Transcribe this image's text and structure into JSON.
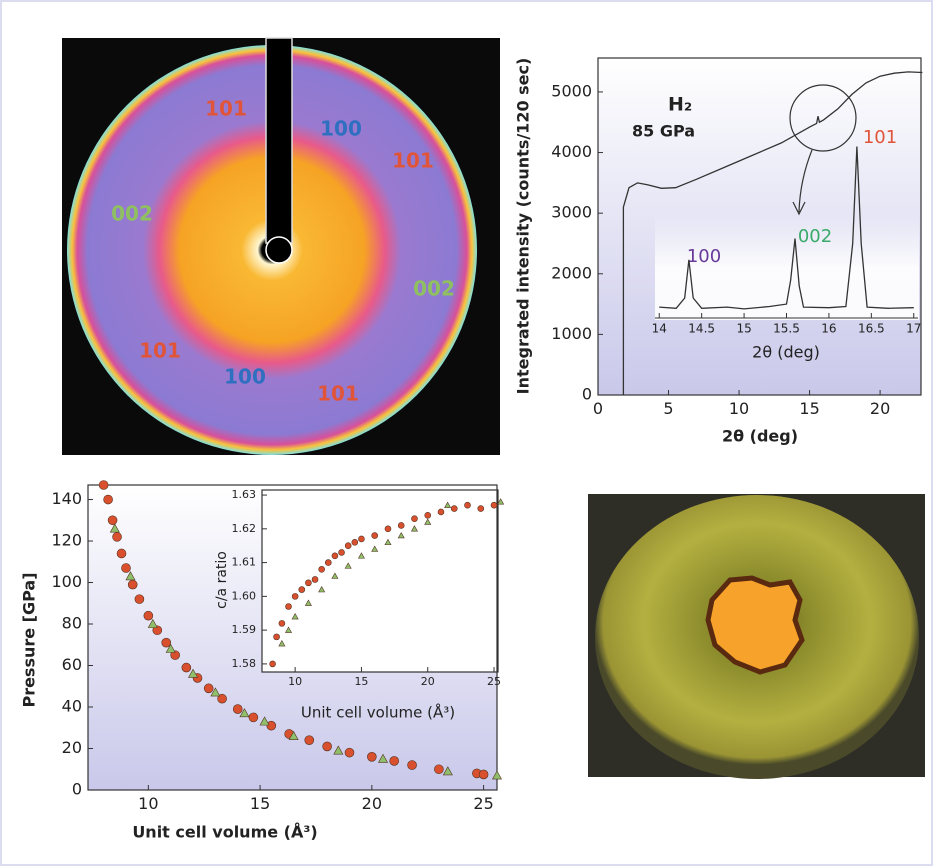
{
  "diffraction_image": {
    "ring_labels": [
      {
        "text": "101",
        "color": "#e0553a"
      },
      {
        "text": "100",
        "color": "#2f6fc0"
      },
      {
        "text": "101",
        "color": "#e0553a"
      },
      {
        "text": "002",
        "color": "#8fc060"
      },
      {
        "text": "002",
        "color": "#8fc060"
      },
      {
        "text": "101",
        "color": "#e0553a"
      },
      {
        "text": "100",
        "color": "#2f6fc0"
      },
      {
        "text": "101",
        "color": "#e0553a"
      }
    ]
  },
  "chart_data": [
    {
      "type": "line",
      "title": "H₂",
      "subtitle": "85 GPa",
      "xlabel": "2θ (deg)",
      "ylabel": "Integrated intensity (counts/120 sec)",
      "xlim": [
        0,
        22.9
      ],
      "xticks": [
        0,
        5,
        10,
        15,
        20
      ],
      "ylim": [
        0,
        5560
      ],
      "yticks": [
        0,
        1000,
        2000,
        3000,
        4000,
        5000
      ],
      "series": [
        {
          "color": "#333333",
          "x": [
            1.8,
            1.8,
            2.2,
            2.8,
            3.5,
            4.5,
            5.5,
            7,
            9,
            11,
            13,
            15,
            15.5,
            15.6,
            15.7,
            16,
            17,
            18,
            19,
            20,
            21,
            22,
            23
          ],
          "values": [
            0,
            3100,
            3420,
            3500,
            3470,
            3410,
            3420,
            3560,
            3760,
            3960,
            4160,
            4420,
            4480,
            4600,
            4500,
            4540,
            4720,
            4960,
            5150,
            5260,
            5310,
            5330,
            5320
          ]
        }
      ]
    },
    {
      "type": "line",
      "xlabel": "2θ (deg)",
      "xlim": [
        13.95,
        17.05
      ],
      "xticks": [
        14,
        14.5,
        15,
        15.5,
        16,
        16.5,
        17
      ],
      "annotations": [
        {
          "text": "100",
          "color": "#6a3a9a"
        },
        {
          "text": "002",
          "color": "#3aaa6a"
        },
        {
          "text": "101",
          "color": "#e0553a"
        }
      ],
      "series": [
        {
          "color": "#333333",
          "x": [
            14.0,
            14.2,
            14.3,
            14.35,
            14.4,
            14.5,
            14.8,
            15.0,
            15.3,
            15.5,
            15.55,
            15.6,
            15.65,
            15.7,
            16.0,
            16.2,
            16.28,
            16.33,
            16.38,
            16.45,
            16.7,
            17.0
          ],
          "values": [
            1450,
            1430,
            1600,
            2230,
            1600,
            1430,
            1450,
            1420,
            1460,
            1500,
            1900,
            2580,
            1800,
            1450,
            1440,
            1460,
            2500,
            4100,
            2500,
            1450,
            1430,
            1440
          ]
        }
      ]
    },
    {
      "type": "scatter",
      "xlabel": "Unit cell volume (Å³)",
      "ylabel": "Pressure [GPa]",
      "xlim": [
        7.3,
        25.6
      ],
      "xticks": [
        10,
        15,
        20,
        25
      ],
      "ylim": [
        0,
        147
      ],
      "yticks": [
        0,
        20,
        40,
        60,
        80,
        100,
        120,
        140
      ],
      "series": [
        {
          "color": "#d9502e",
          "marker": "circle",
          "x": [
            8.0,
            8.2,
            8.4,
            8.6,
            8.8,
            9.0,
            9.3,
            9.6,
            10,
            10.4,
            10.8,
            11.2,
            11.7,
            12.2,
            12.7,
            13.3,
            14,
            14.7,
            15.5,
            16.3,
            17.2,
            18,
            19,
            20,
            21,
            21.8,
            23,
            24.7,
            25
          ],
          "values": [
            147,
            140,
            130,
            122,
            114,
            107,
            99,
            92,
            84,
            77,
            71,
            65,
            59,
            54,
            49,
            44,
            39,
            35,
            31,
            27,
            24,
            21,
            18,
            16,
            14,
            12,
            10,
            8,
            7.5
          ]
        },
        {
          "color": "#8fbf6a",
          "marker": "triangle",
          "x": [
            8.5,
            9.2,
            10.2,
            11,
            12,
            13,
            14.3,
            15.2,
            16.5,
            18.5,
            20.5,
            23.4,
            25.6
          ],
          "values": [
            126,
            103,
            80,
            68,
            56,
            47,
            37,
            33,
            26,
            19,
            15,
            9,
            7
          ]
        }
      ]
    },
    {
      "type": "scatter",
      "xlabel": "Unit cell volume (Å³)",
      "ylabel": "c/a ratio",
      "xlim": [
        7.5,
        25.3
      ],
      "xticks": [
        10,
        15,
        20,
        25
      ],
      "ylim": [
        1.5776,
        1.6315
      ],
      "yticks": [
        1.58,
        1.59,
        {
          "value": 1.6,
          "label": "1.60"
        },
        1.61,
        1.62,
        1.63
      ],
      "series": [
        {
          "color": "#d9502e",
          "marker": "circle",
          "x": [
            8.3,
            8.6,
            9,
            9.5,
            10,
            10.5,
            11,
            11.5,
            12,
            12.5,
            13,
            13.5,
            14,
            14.5,
            15,
            16,
            17,
            18,
            19,
            20,
            21,
            22,
            23,
            24,
            25
          ],
          "values": [
            1.58,
            1.588,
            1.592,
            1.597,
            1.6,
            1.602,
            1.604,
            1.605,
            1.608,
            1.61,
            1.612,
            1.613,
            1.615,
            1.616,
            1.617,
            1.618,
            1.62,
            1.621,
            1.623,
            1.624,
            1.625,
            1.626,
            1.627,
            1.626,
            1.627
          ]
        },
        {
          "color": "#8fbf6a",
          "marker": "triangle",
          "x": [
            9,
            9.5,
            10,
            11,
            12,
            13,
            14,
            15,
            16,
            17,
            18,
            19,
            20,
            21.5,
            25.5
          ],
          "values": [
            1.586,
            1.59,
            1.594,
            1.598,
            1.602,
            1.606,
            1.609,
            1.612,
            1.614,
            1.616,
            1.618,
            1.62,
            1.622,
            1.627,
            1.628
          ]
        }
      ]
    }
  ]
}
